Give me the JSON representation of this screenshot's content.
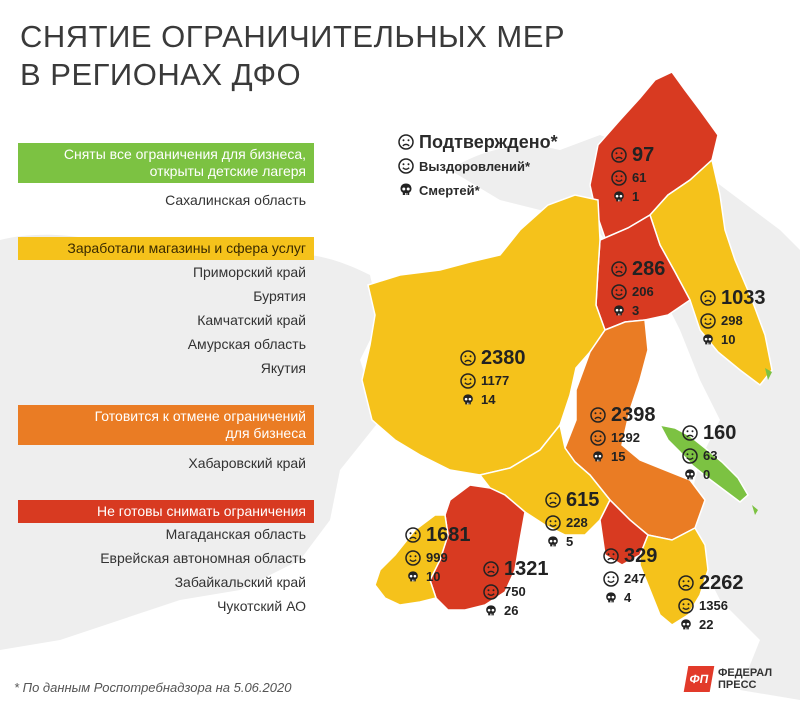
{
  "title": {
    "line1": "СНЯТИЕ ОГРАНИЧИТЕЛЬНЫХ МЕР",
    "line2": "В РЕГИОНАХ ДФО"
  },
  "categories": [
    {
      "label_l1": "Сняты все ограничения для бизнеса,",
      "label_l2": "открыты детские лагеря",
      "color": "#7cc242",
      "regions": [
        "Сахалинская область"
      ]
    },
    {
      "label_l1": "Заработали магазины и сфера услуг",
      "label_l2": "",
      "color": "#f5c21b",
      "regions": [
        "Приморский край",
        "Бурятия",
        "Камчатский край",
        "Амурская область",
        "Якутия"
      ]
    },
    {
      "label_l1": "Готовится к отмене ограничений",
      "label_l2": "для бизнеса",
      "color": "#ea7c24",
      "regions": [
        "Хабаровский край"
      ]
    },
    {
      "label_l1": "Не готовы снимать ограничения",
      "label_l2": "",
      "color": "#d83a21",
      "regions": [
        "Магаданская область",
        "Еврейская автономная область",
        "Забайкальский край",
        "Чукотский АО"
      ]
    }
  ],
  "legend": {
    "confirmed": "Подтверждено*",
    "recovered": "Выздоровлений*",
    "deaths": "Смертей*"
  },
  "stats": [
    {
      "confirmed": "97",
      "recovered": "61",
      "deaths": "1"
    },
    {
      "confirmed": "286",
      "recovered": "206",
      "deaths": "3"
    },
    {
      "confirmed": "1033",
      "recovered": "298",
      "deaths": "10"
    },
    {
      "confirmed": "2380",
      "recovered": "1177",
      "deaths": "14"
    },
    {
      "confirmed": "2398",
      "recovered": "1292",
      "deaths": "15"
    },
    {
      "confirmed": "160",
      "recovered": "63",
      "deaths": "0"
    },
    {
      "confirmed": "615",
      "recovered": "228",
      "deaths": "5"
    },
    {
      "confirmed": "1681",
      "recovered": "999",
      "deaths": "10"
    },
    {
      "confirmed": "1321",
      "recovered": "750",
      "deaths": "26"
    },
    {
      "confirmed": "329",
      "recovered": "247",
      "deaths": "4"
    },
    {
      "confirmed": "2262",
      "recovered": "1356",
      "deaths": "22"
    }
  ],
  "footnote": "* По данным Роспотребнадзора на 5.06.2020",
  "brand": {
    "mark": "ФП",
    "line1": "ФЕДЕРАЛ",
    "line2": "ПРЕСС"
  }
}
